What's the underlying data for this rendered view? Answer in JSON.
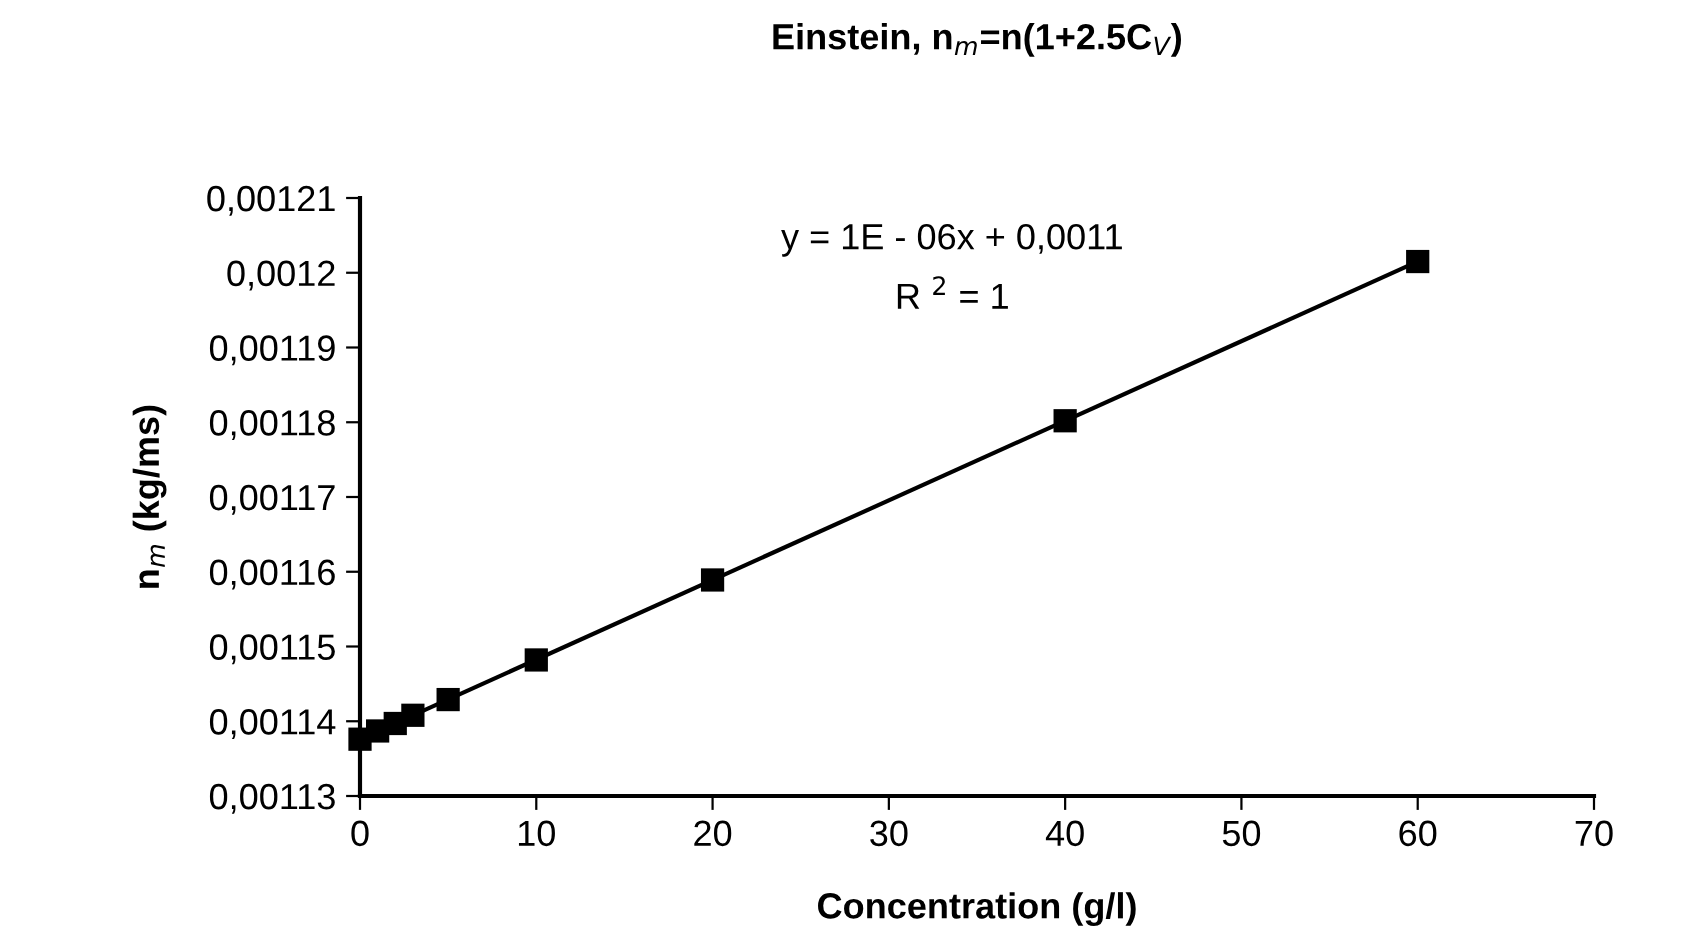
{
  "chart_data": {
    "type": "scatter",
    "title": "Einstein, n$_{m}$=n(1+2.5C$_{V}$)",
    "xlabel": "Concentration (g/l)",
    "ylabel": "n$_{m}$ (kg/ms)",
    "series": [
      {
        "color": "#000000",
        "marker": "square",
        "x": [
          0,
          1,
          2,
          3,
          5,
          10,
          20,
          40,
          60
        ],
        "values": [
          0.0011376,
          0.0011387,
          0.0011397,
          0.0011408,
          0.0011429,
          0.0011482,
          0.0011589,
          0.0011802,
          0.0012015
        ]
      },
      {
        "type": "line",
        "color": "#000000",
        "marker": "none",
        "line_style": "solid",
        "x": [
          0,
          60
        ],
        "values": [
          0.0011376,
          0.0012015
        ]
      }
    ],
    "annotations": [
      {
        "text": "y = 1E - 06x + 0,0011"
      },
      {
        "text": "R $^{2}$ = 1"
      }
    ],
    "xlim": [
      0,
      70
    ],
    "xticks": [
      0,
      10,
      20,
      30,
      40,
      50,
      60,
      70
    ],
    "ylim": [
      0.00113,
      0.00121
    ],
    "yticks": [
      {
        "value": 0.00113,
        "label": "0,00113"
      },
      {
        "value": 0.00114,
        "label": "0,00114"
      },
      {
        "value": 0.00115,
        "label": "0,00115"
      },
      {
        "value": 0.00116,
        "label": "0,00116"
      },
      {
        "value": 0.00117,
        "label": "0,00117"
      },
      {
        "value": 0.00118,
        "label": "0,00118"
      },
      {
        "value": 0.00119,
        "label": "0,00119"
      },
      {
        "value": 0.0012,
        "label": "0,0012"
      },
      {
        "value": 0.00121,
        "label": "0,00121"
      }
    ],
    "grid": false,
    "legend": false
  }
}
